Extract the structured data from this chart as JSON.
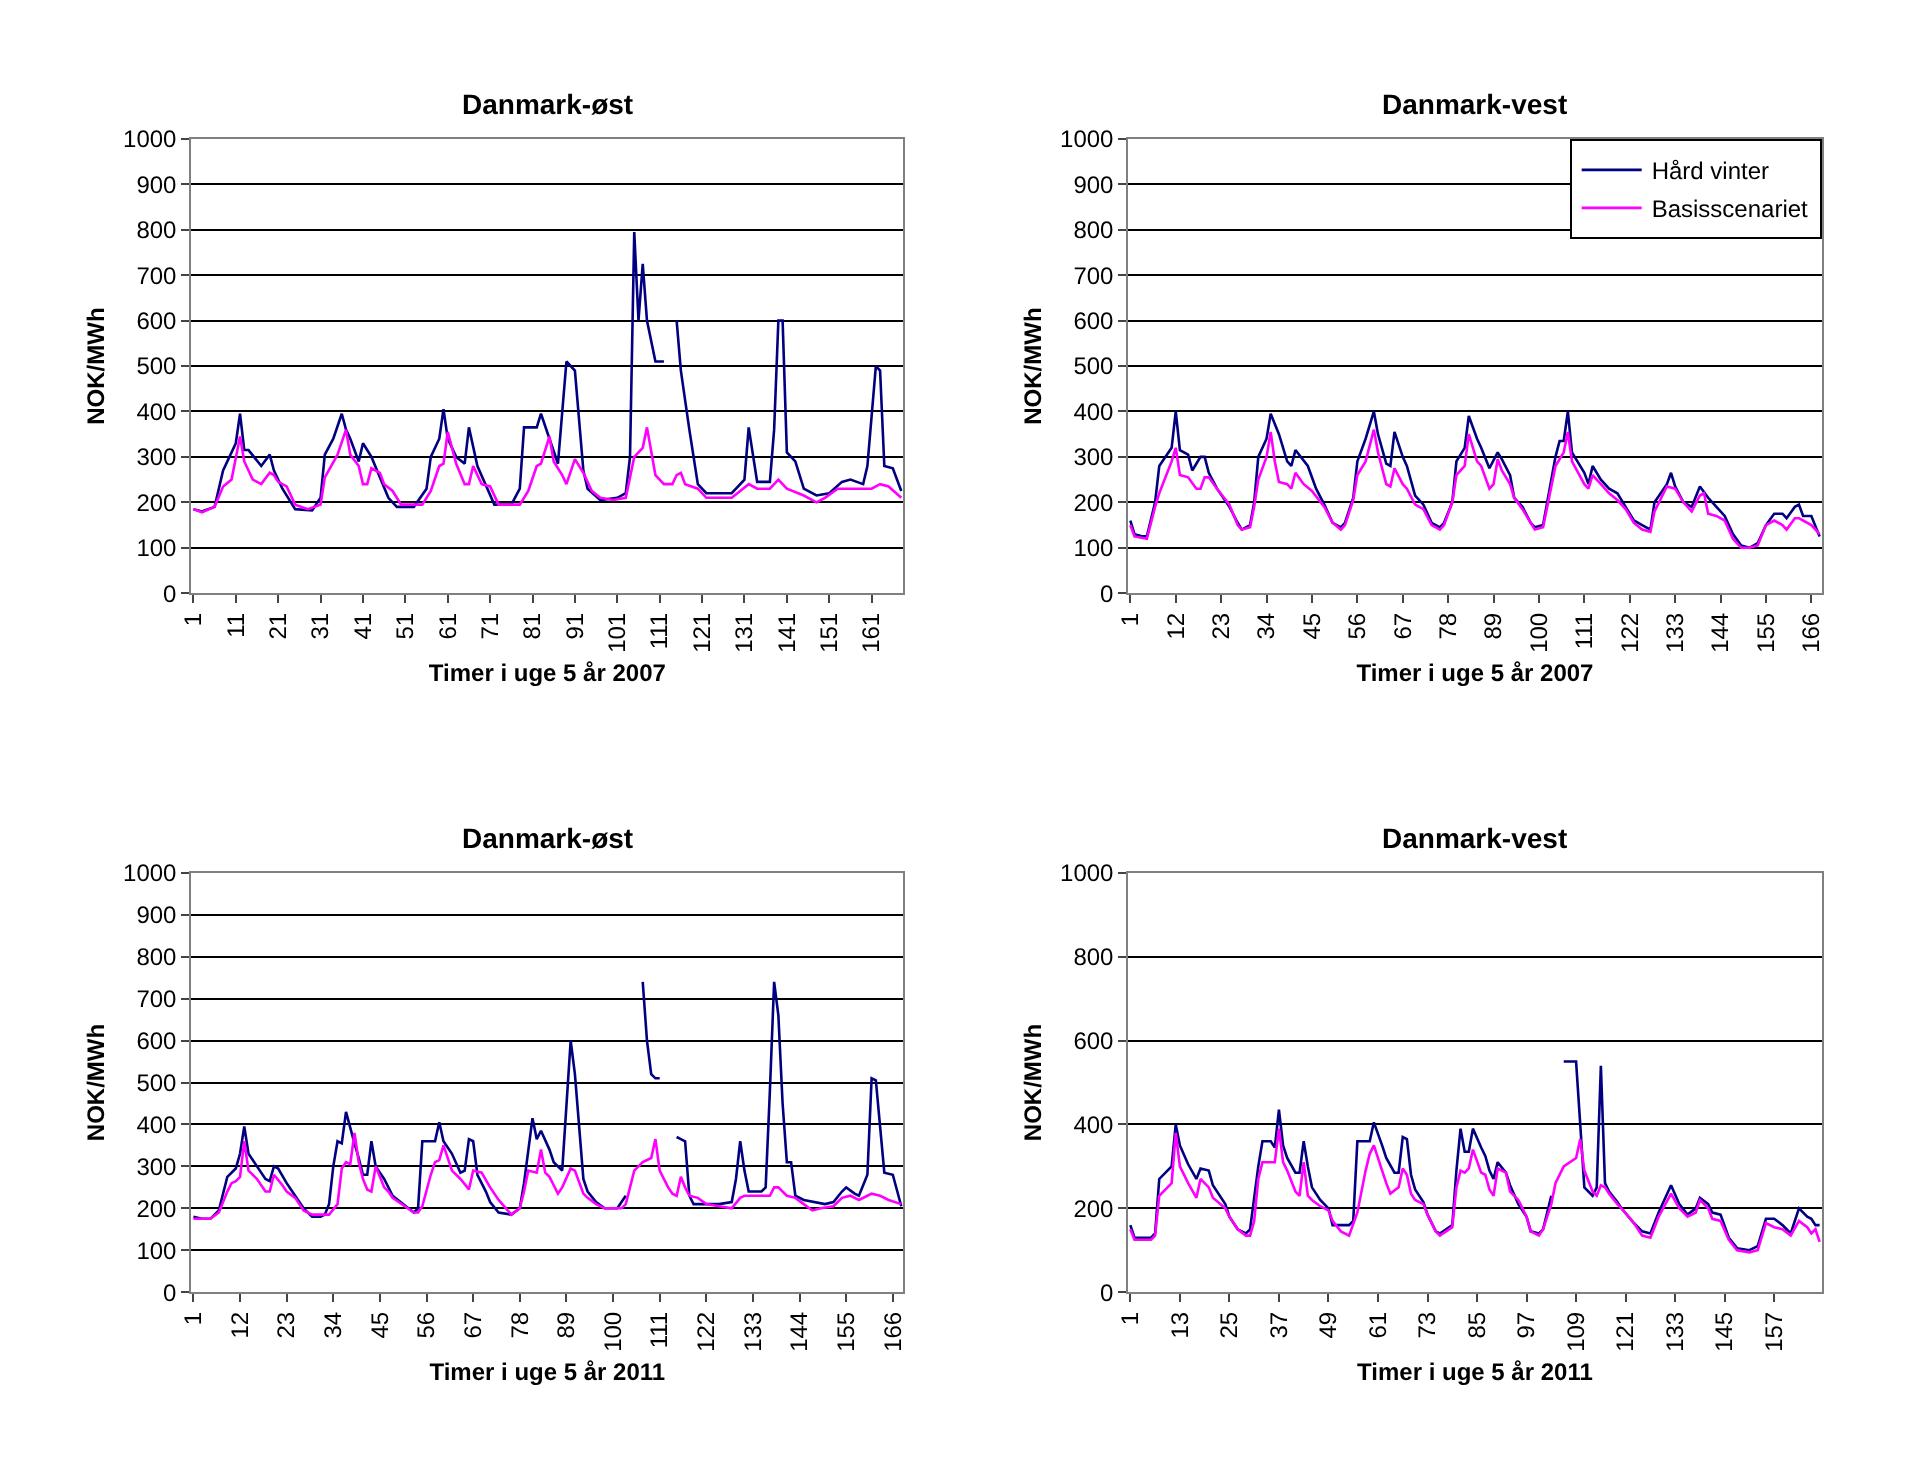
{
  "chart_data": [
    {
      "type": "line",
      "title": "Danmark-øst",
      "xlabel": "Timer i uge 5 år 2007",
      "ylabel": "NOK/MWh",
      "xlim": [
        0.5,
        168.5
      ],
      "xticks": [
        1,
        11,
        21,
        31,
        41,
        51,
        61,
        71,
        81,
        91,
        101,
        111,
        121,
        131,
        141,
        151,
        161
      ],
      "ylim": [
        0,
        1000
      ],
      "yticks": [
        0,
        100,
        200,
        300,
        400,
        500,
        600,
        700,
        800,
        900,
        1000
      ],
      "grid": "y",
      "legend": false,
      "series": [
        {
          "color": "#000080",
          "x": [
            1,
            3,
            6,
            8,
            11,
            12,
            13,
            14,
            17,
            19,
            20,
            22,
            25,
            29,
            31,
            32,
            34,
            36,
            37,
            38,
            40,
            41,
            43,
            47,
            49,
            53,
            56,
            57,
            59,
            60,
            61,
            63,
            65,
            66,
            68,
            72,
            76,
            78,
            79,
            82,
            83,
            85,
            87,
            89,
            91,
            93,
            94,
            97,
            101,
            103,
            104,
            105,
            106,
            107,
            108,
            110,
            112,
            113,
            114,
            115,
            116,
            118,
            120,
            122,
            125,
            128,
            131,
            132,
            134,
            137,
            138,
            139,
            140,
            141,
            143,
            145,
            148,
            151,
            154,
            156,
            159,
            160,
            162,
            163,
            164,
            166,
            168
          ],
          "values": [
            185,
            180,
            190,
            270,
            330,
            395,
            315,
            315,
            280,
            305,
            270,
            230,
            185,
            182,
            210,
            305,
            340,
            395,
            360,
            340,
            290,
            330,
            300,
            210,
            190,
            190,
            230,
            300,
            340,
            405,
            340,
            300,
            285,
            365,
            280,
            195,
            195,
            230,
            365,
            365,
            395,
            340,
            285,
            510,
            490,
            270,
            230,
            205,
            210,
            220,
            300,
            795,
            600,
            725,
            600,
            510,
            510,
            null,
            null,
            600,
            490,
            360,
            240,
            220,
            220,
            220,
            250,
            365,
            245,
            245,
            360,
            600,
            600,
            310,
            290,
            230,
            215,
            220,
            245,
            250,
            240,
            280,
            500,
            490,
            280,
            275,
            225
          ]
        },
        {
          "color": "#ff00ff",
          "x": [
            1,
            3,
            6,
            8,
            10,
            12,
            13,
            15,
            17,
            19,
            20,
            21,
            23,
            25,
            28,
            31,
            32,
            35,
            37,
            38,
            40,
            41,
            42,
            43,
            45,
            46,
            48,
            50,
            55,
            57,
            59,
            60,
            61,
            63,
            65,
            66,
            67,
            69,
            71,
            73,
            78,
            80,
            82,
            83,
            85,
            86,
            88,
            89,
            91,
            93,
            95,
            97,
            100,
            103,
            105,
            107,
            108,
            110,
            112,
            114,
            115,
            116,
            117,
            120,
            122,
            128,
            130,
            132,
            134,
            137,
            139,
            141,
            145,
            148,
            150,
            153,
            157,
            161,
            163,
            165,
            168
          ],
          "values": [
            185,
            178,
            190,
            235,
            250,
            345,
            290,
            250,
            240,
            265,
            260,
            245,
            235,
            195,
            185,
            195,
            255,
            305,
            360,
            305,
            280,
            240,
            240,
            275,
            265,
            240,
            225,
            195,
            195,
            225,
            280,
            285,
            355,
            285,
            240,
            240,
            280,
            240,
            235,
            195,
            195,
            225,
            280,
            285,
            345,
            290,
            260,
            240,
            295,
            265,
            225,
            210,
            205,
            210,
            300,
            320,
            365,
            260,
            240,
            240,
            260,
            265,
            240,
            230,
            210,
            210,
            225,
            240,
            230,
            230,
            250,
            230,
            215,
            200,
            210,
            230,
            230,
            230,
            240,
            235,
            210
          ]
        }
      ]
    },
    {
      "type": "line",
      "title": "Danmark-vest",
      "xlabel": "Timer i uge 5 år 2007",
      "ylabel": "NOK/MWh",
      "xlim": [
        0.5,
        168.5
      ],
      "xticks": [
        1,
        12,
        23,
        34,
        45,
        56,
        67,
        78,
        89,
        100,
        111,
        122,
        133,
        144,
        155,
        166
      ],
      "ylim": [
        0,
        1000
      ],
      "yticks": [
        0,
        100,
        200,
        300,
        400,
        500,
        600,
        700,
        800,
        900,
        1000
      ],
      "grid": "y",
      "legend": "top right",
      "series": [
        {
          "name": "Hård vinter",
          "color": "#000080",
          "x": [
            1,
            2,
            4,
            5,
            7,
            8,
            11,
            12,
            13,
            15,
            16,
            18,
            19,
            20,
            22,
            25,
            27,
            28,
            30,
            31,
            32,
            34,
            35,
            37,
            39,
            40,
            41,
            44,
            46,
            48,
            50,
            52,
            53,
            55,
            56,
            58,
            60,
            61,
            63,
            64,
            65,
            67,
            68,
            70,
            72,
            74,
            76,
            77,
            79,
            80,
            82,
            83,
            85,
            86,
            88,
            90,
            91,
            93,
            94,
            96,
            98,
            99,
            101,
            102,
            104,
            105,
            106,
            107,
            108,
            111,
            112,
            113,
            115,
            117,
            119,
            121,
            123,
            125,
            127,
            128,
            131,
            132,
            133,
            135,
            137,
            139,
            141,
            143,
            145,
            147,
            149,
            151,
            153,
            155,
            157,
            159,
            160,
            162,
            163,
            164,
            166,
            168
          ],
          "values": [
            160,
            130,
            125,
            125,
            200,
            280,
            320,
            400,
            315,
            305,
            270,
            300,
            300,
            265,
            230,
            190,
            155,
            140,
            150,
            200,
            300,
            340,
            395,
            350,
            290,
            280,
            315,
            280,
            230,
            195,
            155,
            145,
            155,
            210,
            290,
            340,
            400,
            350,
            285,
            280,
            355,
            300,
            280,
            215,
            195,
            155,
            145,
            155,
            200,
            290,
            320,
            390,
            340,
            320,
            275,
            310,
            295,
            260,
            210,
            190,
            155,
            145,
            150,
            200,
            300,
            335,
            335,
            400,
            310,
            265,
            240,
            280,
            250,
            230,
            220,
            190,
            160,
            150,
            140,
            200,
            240,
            265,
            235,
            200,
            190,
            235,
            210,
            190,
            170,
            130,
            105,
            100,
            110,
            150,
            175,
            175,
            165,
            190,
            195,
            170,
            170,
            125
          ]
        },
        {
          "name": "Basisscenariet",
          "color": "#ff00ff",
          "x": [
            1,
            2,
            5,
            7,
            8,
            11,
            12,
            13,
            15,
            17,
            18,
            19,
            20,
            22,
            25,
            27,
            28,
            30,
            31,
            32,
            34,
            35,
            36,
            37,
            39,
            40,
            41,
            43,
            45,
            48,
            50,
            52,
            53,
            55,
            56,
            58,
            60,
            61,
            63,
            64,
            65,
            67,
            68,
            70,
            72,
            74,
            76,
            77,
            79,
            80,
            82,
            83,
            85,
            86,
            88,
            89,
            90,
            91,
            93,
            94,
            96,
            98,
            99,
            101,
            102,
            104,
            106,
            107,
            108,
            111,
            112,
            113,
            115,
            117,
            119,
            121,
            123,
            125,
            127,
            128,
            131,
            133,
            135,
            137,
            139,
            140,
            141,
            143,
            145,
            147,
            149,
            151,
            153,
            155,
            157,
            159,
            160,
            162,
            163,
            164,
            166,
            168
          ],
          "values": [
            150,
            125,
            120,
            190,
            220,
            290,
            320,
            260,
            255,
            230,
            230,
            255,
            255,
            230,
            195,
            150,
            140,
            145,
            190,
            250,
            300,
            355,
            290,
            245,
            240,
            230,
            265,
            240,
            225,
            190,
            155,
            140,
            150,
            205,
            260,
            290,
            360,
            310,
            240,
            235,
            275,
            240,
            230,
            195,
            185,
            150,
            140,
            150,
            200,
            260,
            280,
            350,
            290,
            280,
            230,
            240,
            295,
            270,
            240,
            210,
            185,
            155,
            140,
            145,
            190,
            280,
            310,
            355,
            290,
            240,
            230,
            260,
            240,
            220,
            205,
            185,
            155,
            140,
            135,
            180,
            235,
            230,
            200,
            180,
            215,
            220,
            175,
            170,
            160,
            120,
            100,
            100,
            105,
            150,
            160,
            150,
            140,
            165,
            165,
            160,
            150,
            130
          ]
        }
      ]
    },
    {
      "type": "line",
      "title": "Danmark-øst",
      "xlabel": "Timer i uge 5 år 2011",
      "ylabel": "NOK/MWh",
      "xlim": [
        0.5,
        168.5
      ],
      "xticks": [
        1,
        12,
        23,
        34,
        45,
        56,
        67,
        78,
        89,
        100,
        111,
        122,
        133,
        144,
        155,
        166
      ],
      "ylim": [
        0,
        1000
      ],
      "yticks": [
        0,
        100,
        200,
        300,
        400,
        500,
        600,
        700,
        800,
        900,
        1000
      ],
      "grid": "y",
      "legend": false,
      "series": [
        {
          "color": "#000080",
          "x": [
            1,
            3,
            5,
            7,
            9,
            11,
            12,
            13,
            14,
            16,
            18,
            19,
            20,
            21,
            23,
            25,
            27,
            29,
            31,
            32,
            33,
            34,
            35,
            36,
            37,
            39,
            40,
            41,
            42,
            43,
            44,
            46,
            48,
            53,
            54,
            55,
            58,
            59,
            60,
            62,
            64,
            65,
            66,
            67,
            68,
            70,
            71,
            73,
            76,
            78,
            79,
            81,
            82,
            83,
            85,
            86,
            88,
            90,
            91,
            93,
            94,
            96,
            98,
            101,
            102,
            103,
            104,
            105,
            107,
            108,
            109,
            110,
            111,
            112,
            113,
            114,
            115,
            116,
            117,
            118,
            119,
            121,
            125,
            128,
            129,
            130,
            131,
            132,
            135,
            136,
            137,
            138,
            139,
            140,
            141,
            142,
            143,
            145,
            150,
            152,
            154,
            155,
            157,
            158,
            160,
            161,
            162,
            164,
            166,
            168
          ],
          "values": [
            180,
            175,
            175,
            195,
            275,
            295,
            330,
            395,
            330,
            300,
            270,
            265,
            300,
            295,
            260,
            230,
            200,
            180,
            180,
            185,
            210,
            300,
            360,
            355,
            430,
            355,
            320,
            280,
            280,
            360,
            300,
            270,
            230,
            190,
            200,
            360,
            360,
            405,
            360,
            330,
            285,
            290,
            365,
            360,
            280,
            240,
            215,
            190,
            185,
            200,
            260,
            415,
            365,
            385,
            340,
            310,
            290,
            600,
            520,
            270,
            240,
            215,
            200,
            200,
            215,
            230,
            null,
            null,
            740,
            600,
            520,
            510,
            510,
            null,
            null,
            null,
            370,
            365,
            360,
            230,
            210,
            210,
            210,
            215,
            270,
            360,
            290,
            240,
            240,
            250,
            480,
            740,
            660,
            450,
            310,
            310,
            230,
            220,
            210,
            215,
            240,
            250,
            235,
            230,
            280,
            510,
            505,
            285,
            280,
            205
          ]
        },
        {
          "color": "#ff00ff",
          "x": [
            1,
            5,
            7,
            9,
            10,
            11,
            12,
            13,
            14,
            16,
            18,
            19,
            20,
            22,
            23,
            25,
            27,
            29,
            33,
            35,
            36,
            37,
            38,
            39,
            40,
            41,
            42,
            43,
            44,
            46,
            47,
            48,
            53,
            54,
            55,
            57,
            58,
            59,
            60,
            62,
            64,
            66,
            67,
            69,
            71,
            73,
            76,
            78,
            79,
            80,
            82,
            83,
            84,
            85,
            86,
            87,
            88,
            90,
            91,
            93,
            94,
            96,
            98,
            102,
            103,
            104,
            105,
            107,
            109,
            110,
            111,
            113,
            114,
            115,
            116,
            117,
            118,
            120,
            122,
            125,
            128,
            130,
            131,
            133,
            137,
            138,
            139,
            141,
            143,
            145,
            147,
            149,
            152,
            154,
            156,
            158,
            160,
            161,
            163,
            165,
            168
          ],
          "values": [
            175,
            175,
            190,
            240,
            260,
            265,
            275,
            360,
            290,
            270,
            240,
            240,
            280,
            255,
            240,
            225,
            195,
            185,
            185,
            210,
            295,
            310,
            305,
            380,
            310,
            270,
            245,
            240,
            300,
            250,
            240,
            225,
            190,
            190,
            205,
            280,
            310,
            315,
            350,
            290,
            270,
            245,
            290,
            285,
            250,
            220,
            185,
            200,
            240,
            290,
            285,
            340,
            285,
            275,
            255,
            235,
            250,
            295,
            290,
            235,
            225,
            210,
            200,
            200,
            210,
            250,
            290,
            310,
            320,
            365,
            290,
            250,
            235,
            230,
            275,
            250,
            230,
            225,
            210,
            205,
            200,
            225,
            230,
            230,
            230,
            250,
            250,
            230,
            225,
            210,
            195,
            200,
            205,
            225,
            230,
            220,
            230,
            235,
            230,
            220,
            210
          ]
        }
      ]
    },
    {
      "type": "line",
      "title": "Danmark-vest",
      "xlabel": "Timer i uge 5 år 2011",
      "ylabel": "NOK/MWh",
      "xlim": [
        0.5,
        168.5
      ],
      "xticks": [
        1,
        13,
        25,
        37,
        49,
        61,
        73,
        85,
        97,
        109,
        121,
        133,
        145,
        157
      ],
      "ylim": [
        0,
        1000
      ],
      "yticks": [
        0,
        200,
        400,
        600,
        800,
        1000
      ],
      "grid": "y",
      "legend": false,
      "series": [
        {
          "color": "#000080",
          "x": [
            1,
            2,
            6,
            7,
            8,
            11,
            12,
            13,
            15,
            17,
            18,
            20,
            21,
            24,
            25,
            27,
            29,
            30,
            32,
            33,
            35,
            36,
            37,
            38,
            39,
            41,
            42,
            43,
            44,
            45,
            47,
            49,
            50,
            54,
            55,
            56,
            59,
            60,
            62,
            63,
            65,
            66,
            67,
            68,
            69,
            70,
            72,
            73,
            75,
            76,
            79,
            80,
            81,
            82,
            83,
            84,
            86,
            87,
            88,
            89,
            90,
            92,
            93,
            95,
            97,
            98,
            100,
            101,
            103,
            104,
            105,
            106,
            109,
            110,
            111,
            113,
            114,
            115,
            116,
            117,
            119,
            120,
            123,
            125,
            127,
            129,
            132,
            134,
            136,
            138,
            139,
            141,
            142,
            144,
            146,
            148,
            151,
            153,
            155,
            157,
            159,
            161,
            163,
            165,
            166,
            167,
            168
          ],
          "values": [
            160,
            130,
            130,
            140,
            270,
            300,
            400,
            350,
            305,
            270,
            295,
            290,
            255,
            210,
            180,
            150,
            140,
            150,
            300,
            360,
            360,
            345,
            435,
            350,
            320,
            285,
            285,
            360,
            300,
            250,
            220,
            200,
            160,
            160,
            170,
            360,
            360,
            405,
            350,
            320,
            285,
            285,
            370,
            365,
            280,
            245,
            215,
            185,
            145,
            140,
            160,
            290,
            390,
            335,
            335,
            390,
            345,
            325,
            290,
            270,
            310,
            285,
            255,
            210,
            180,
            145,
            140,
            150,
            230,
            null,
            null,
            550,
            550,
            400,
            250,
            230,
            250,
            540,
            260,
            240,
            215,
            200,
            165,
            145,
            140,
            190,
            255,
            210,
            185,
            200,
            225,
            210,
            190,
            185,
            130,
            105,
            100,
            110,
            175,
            175,
            160,
            140,
            200,
            180,
            175,
            160,
            160
          ]
        },
        {
          "color": "#ff00ff",
          "x": [
            1,
            2,
            6,
            7,
            8,
            10,
            11,
            12,
            13,
            15,
            17,
            18,
            20,
            21,
            24,
            25,
            27,
            29,
            30,
            31,
            32,
            33,
            35,
            36,
            37,
            38,
            39,
            41,
            42,
            43,
            44,
            45,
            47,
            49,
            50,
            52,
            54,
            56,
            58,
            59,
            60,
            62,
            63,
            64,
            66,
            67,
            68,
            69,
            70,
            72,
            73,
            75,
            76,
            79,
            80,
            81,
            82,
            83,
            84,
            86,
            87,
            88,
            89,
            90,
            92,
            93,
            95,
            97,
            98,
            100,
            101,
            103,
            104,
            106,
            109,
            110,
            111,
            113,
            114,
            115,
            116,
            117,
            119,
            120,
            123,
            125,
            127,
            129,
            132,
            134,
            136,
            138,
            139,
            141,
            142,
            144,
            146,
            148,
            151,
            153,
            155,
            157,
            159,
            161,
            163,
            165,
            166,
            167,
            168
          ],
          "values": [
            150,
            125,
            125,
            135,
            230,
            250,
            260,
            380,
            300,
            260,
            225,
            270,
            250,
            225,
            200,
            180,
            150,
            135,
            135,
            170,
            270,
            310,
            310,
            310,
            390,
            310,
            290,
            240,
            230,
            310,
            230,
            220,
            205,
            195,
            170,
            145,
            135,
            190,
            290,
            330,
            350,
            290,
            260,
            235,
            250,
            295,
            280,
            235,
            220,
            210,
            185,
            145,
            135,
            155,
            250,
            290,
            285,
            295,
            340,
            285,
            280,
            245,
            230,
            295,
            285,
            240,
            220,
            180,
            145,
            135,
            150,
            210,
            260,
            300,
            320,
            365,
            290,
            240,
            230,
            255,
            250,
            235,
            210,
            200,
            165,
            135,
            130,
            180,
            235,
            200,
            180,
            190,
            220,
            200,
            175,
            170,
            125,
            100,
            95,
            100,
            165,
            155,
            150,
            135,
            170,
            155,
            140,
            150,
            120
          ]
        }
      ]
    }
  ]
}
